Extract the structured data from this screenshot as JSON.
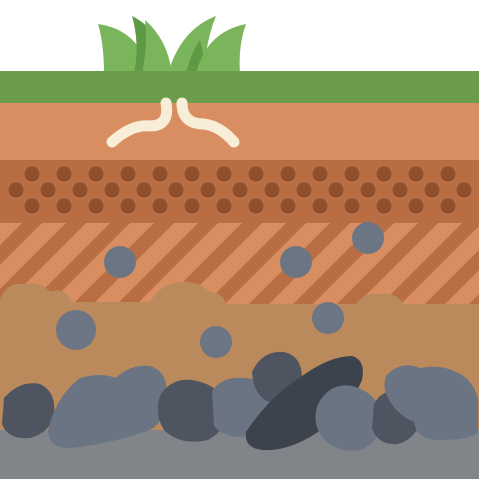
{
  "illustration": {
    "subject": "soil-layers",
    "colors": {
      "background": "#ffffff",
      "grass_blade_light": "#7ab55c",
      "grass_blade_dark": "#5e9a45",
      "grass_strip": "#6a9c4c",
      "topsoil": "#d98e62",
      "roots": "#f8edd6",
      "dotted_layer": "#b86e42",
      "dots": "#8f4f2c",
      "stripe_light": "#d98e62",
      "stripe_dark": "#b86e42",
      "clay_layer": "#bb8a5c",
      "pebble": "#6b7584",
      "rock_dark": "#4e5560",
      "rock_mid": "#6a7482",
      "rock_darkest": "#3d434c",
      "bedrock": "#818488"
    }
  }
}
